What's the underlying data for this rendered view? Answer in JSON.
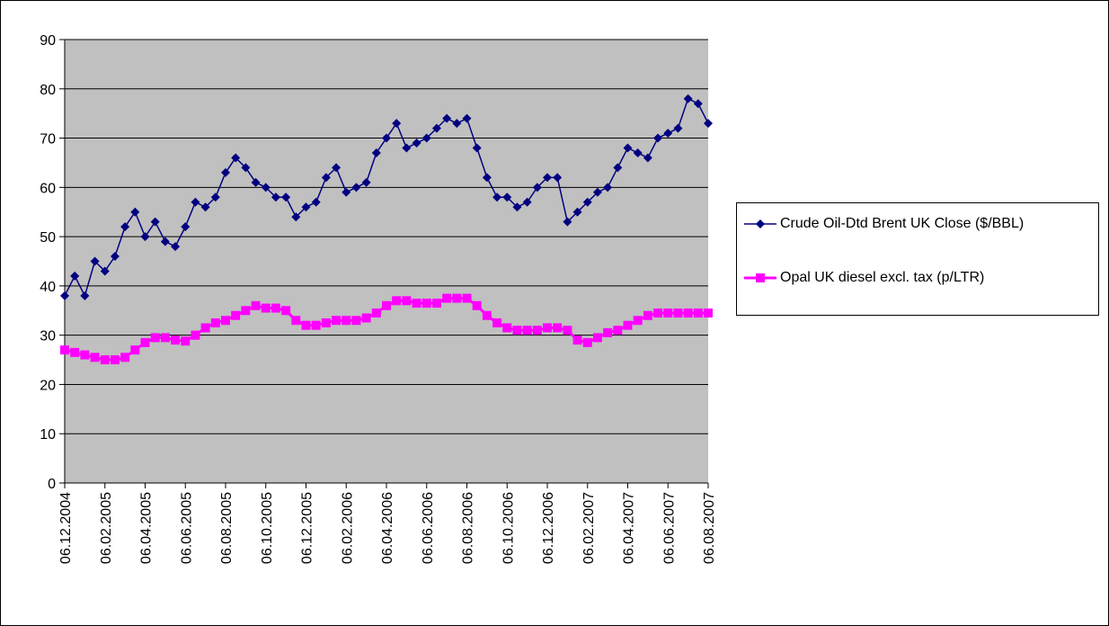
{
  "chart_data": {
    "type": "line",
    "categories": [
      "06.12.2004",
      null,
      null,
      null,
      "06.02.2005",
      null,
      null,
      null,
      "06.04.2005",
      null,
      null,
      null,
      "06.06.2005",
      null,
      null,
      null,
      "06.08.2005",
      null,
      null,
      null,
      "06.10.2005",
      null,
      null,
      null,
      "06.12.2005",
      null,
      null,
      null,
      "06.02.2006",
      null,
      null,
      null,
      "06.04.2006",
      null,
      null,
      null,
      "06.06.2006",
      null,
      null,
      null,
      "06.08.2006",
      null,
      null,
      null,
      "06.10.2006",
      null,
      null,
      null,
      "06.12.2006",
      null,
      null,
      null,
      "06.02.2007",
      null,
      null,
      null,
      "06.04.2007",
      null,
      null,
      null,
      "06.06.2007",
      null,
      null,
      null,
      "06.08.2007"
    ],
    "series": [
      {
        "name": "Crude Oil-Dtd Brent UK Close ($/BBL)",
        "color": "#000080",
        "marker": "diamond",
        "values": [
          38,
          42,
          38,
          45,
          43,
          46,
          52,
          55,
          50,
          53,
          49,
          48,
          52,
          57,
          56,
          58,
          63,
          66,
          64,
          61,
          60,
          58,
          58,
          54,
          56,
          57,
          62,
          64,
          59,
          60,
          61,
          67,
          70,
          73,
          68,
          69,
          70,
          72,
          74,
          73,
          74,
          68,
          62,
          58,
          58,
          56,
          57,
          60,
          62,
          62,
          53,
          55,
          57,
          59,
          60,
          64,
          68,
          67,
          66,
          70,
          71,
          72,
          78,
          77,
          73
        ]
      },
      {
        "name": "Opal UK diesel excl. tax (p/LTR)",
        "color": "#ff00ff",
        "marker": "square",
        "values": [
          27,
          26.5,
          26,
          25.5,
          25,
          25,
          25.5,
          27,
          28.5,
          29.5,
          29.5,
          29,
          28.8,
          30,
          31.5,
          32.5,
          33,
          34,
          35,
          36,
          35.5,
          35.5,
          35,
          33,
          32,
          32,
          32.5,
          33,
          33,
          33,
          33.5,
          34.5,
          36,
          37,
          37,
          36.5,
          36.5,
          36.5,
          37.5,
          37.5,
          37.5,
          36,
          34,
          32.5,
          31.5,
          31,
          31,
          31,
          31.5,
          31.5,
          31,
          29,
          28.5,
          29.5,
          30.5,
          31,
          32,
          33,
          34,
          34.5,
          34.5,
          34.5,
          34.5,
          34.5,
          34.5
        ]
      }
    ],
    "ylim": [
      0,
      90
    ],
    "yticks": [
      0,
      10,
      20,
      30,
      40,
      50,
      60,
      70,
      80,
      90
    ],
    "grid": true,
    "legend": "right"
  }
}
